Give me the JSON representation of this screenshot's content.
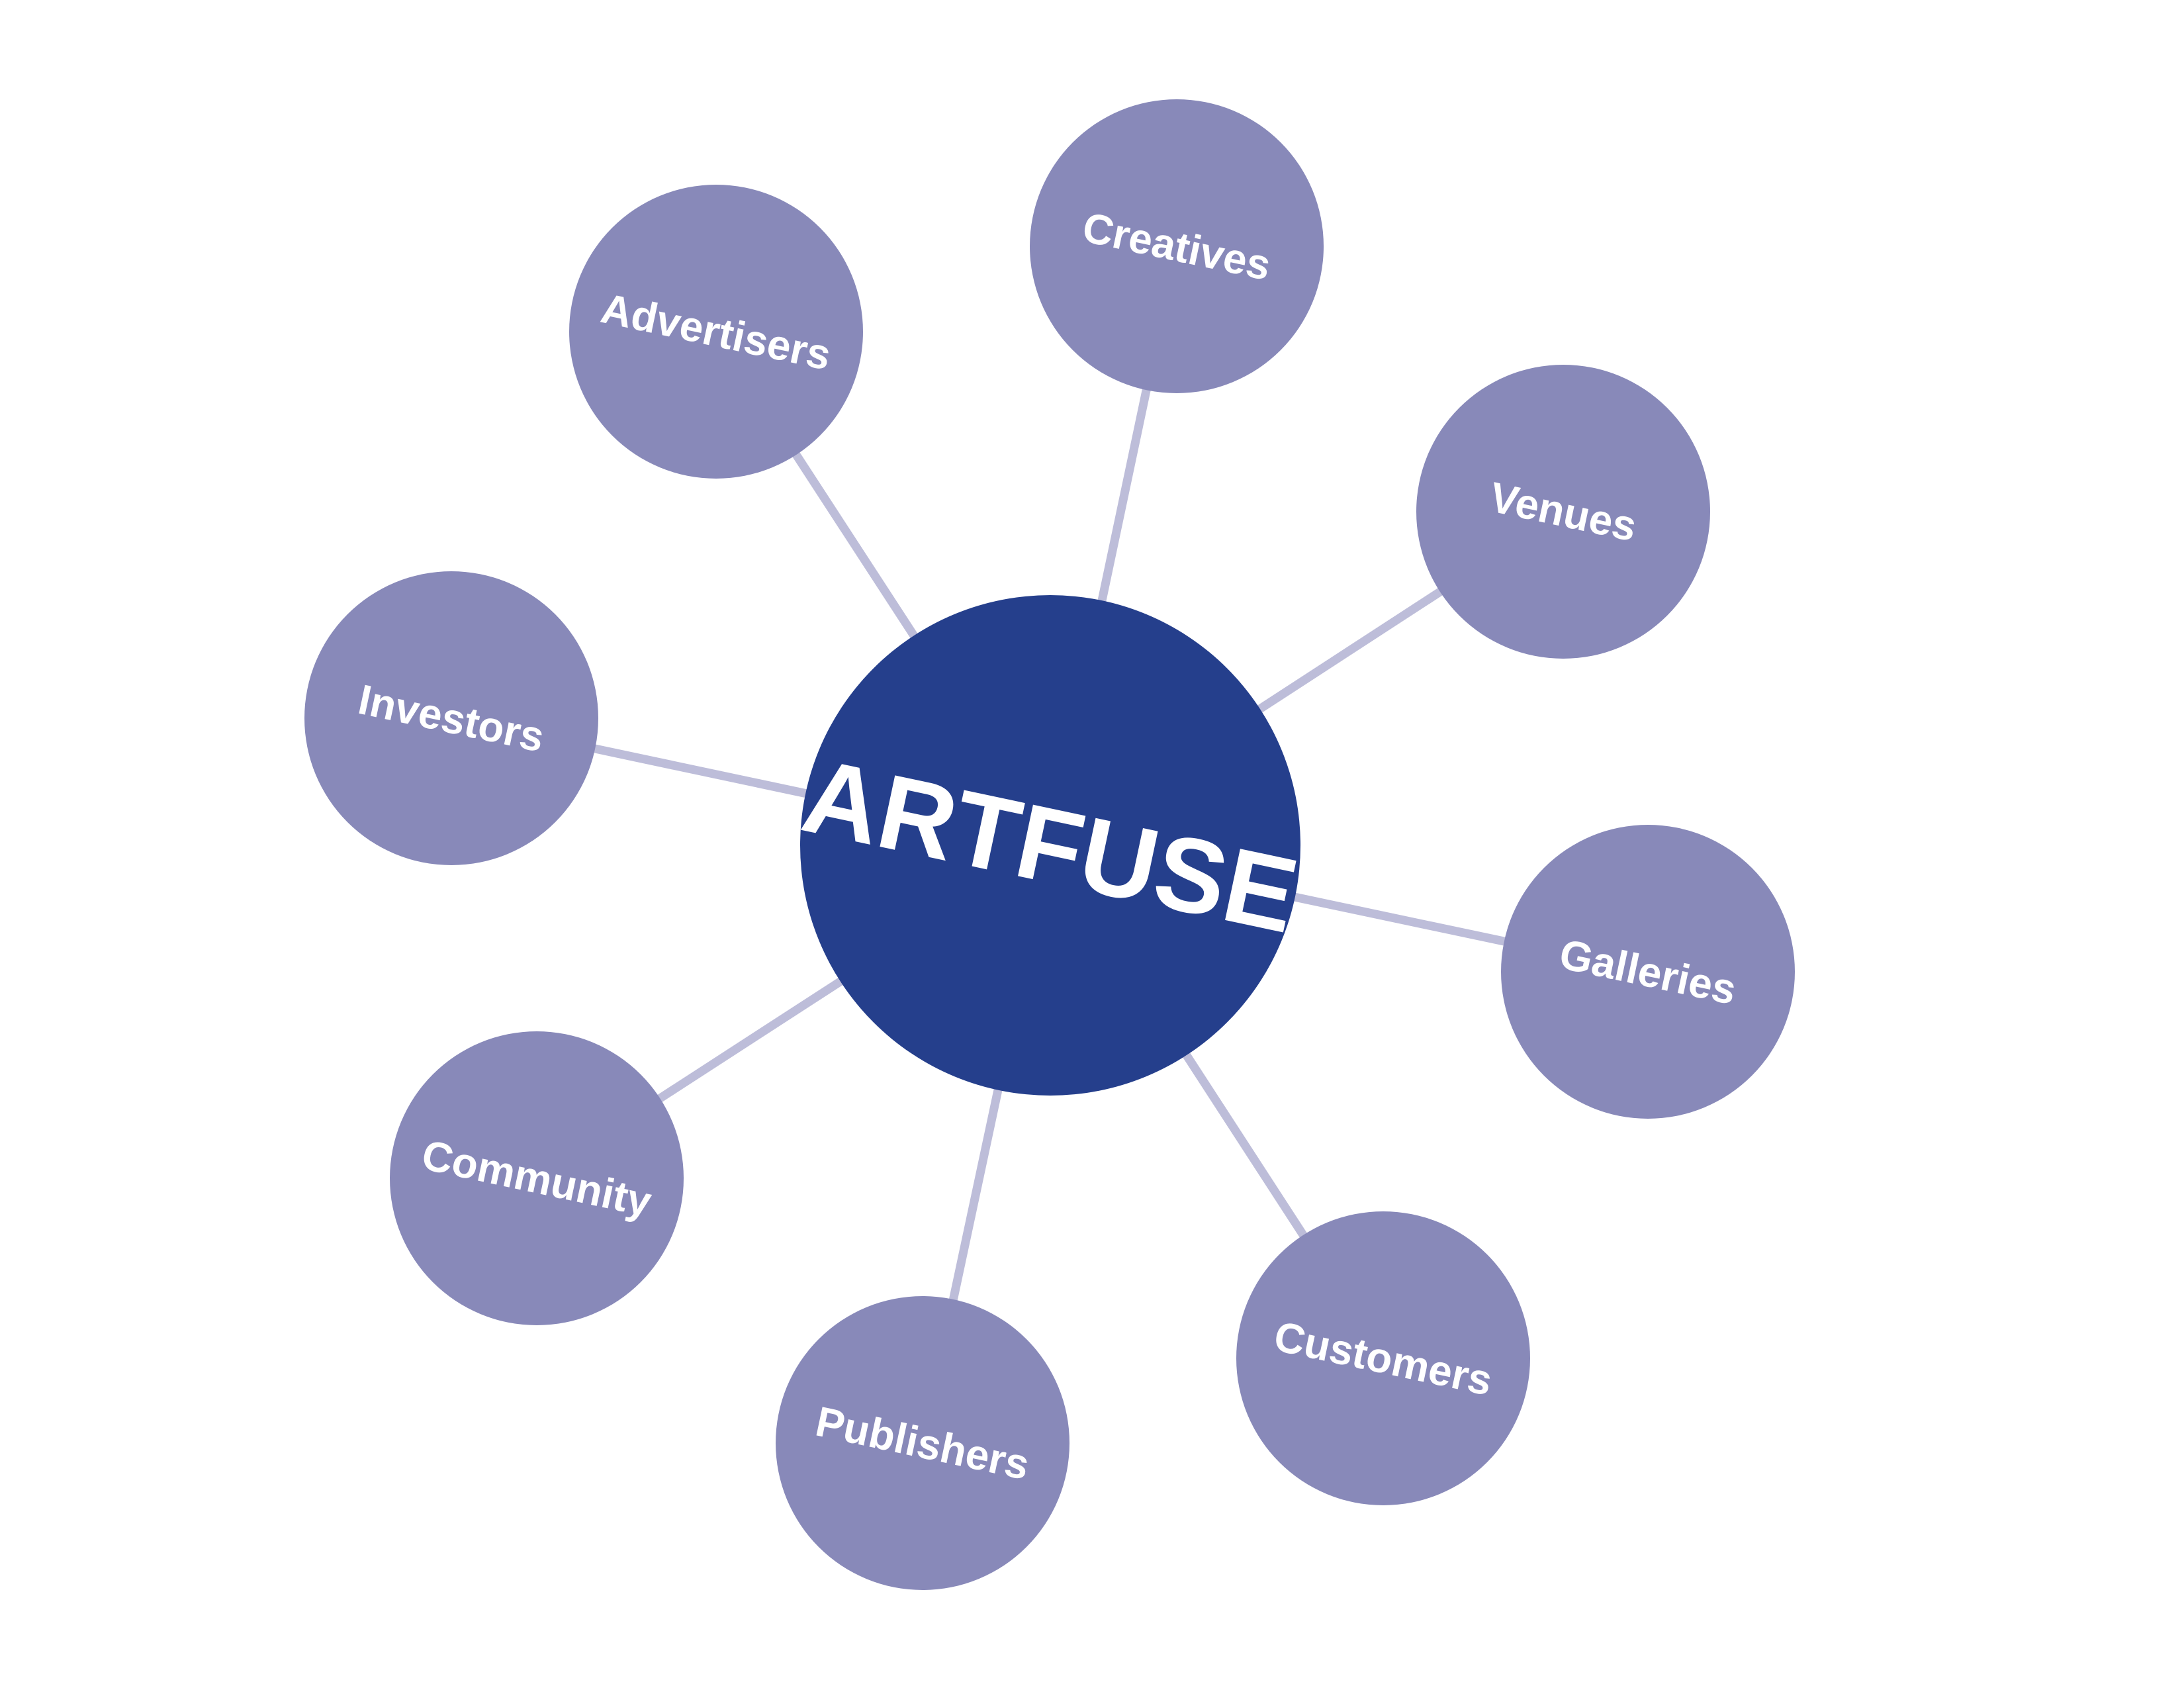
{
  "hub": {
    "label": "ARTFUSE",
    "color": "#253F8C"
  },
  "colors": {
    "node_fill": "#8889B9",
    "spoke": "#BDBDD9",
    "background": "#FFFFFF"
  },
  "nodes": [
    {
      "id": "creatives",
      "label": "Creatives"
    },
    {
      "id": "venues",
      "label": "Venues"
    },
    {
      "id": "galleries",
      "label": "Galleries"
    },
    {
      "id": "customers",
      "label": "Customers"
    },
    {
      "id": "publishers",
      "label": "Publishers"
    },
    {
      "id": "community",
      "label": "Community"
    },
    {
      "id": "investors",
      "label": "Investors"
    },
    {
      "id": "advertisers",
      "label": "Advertisers"
    }
  ]
}
